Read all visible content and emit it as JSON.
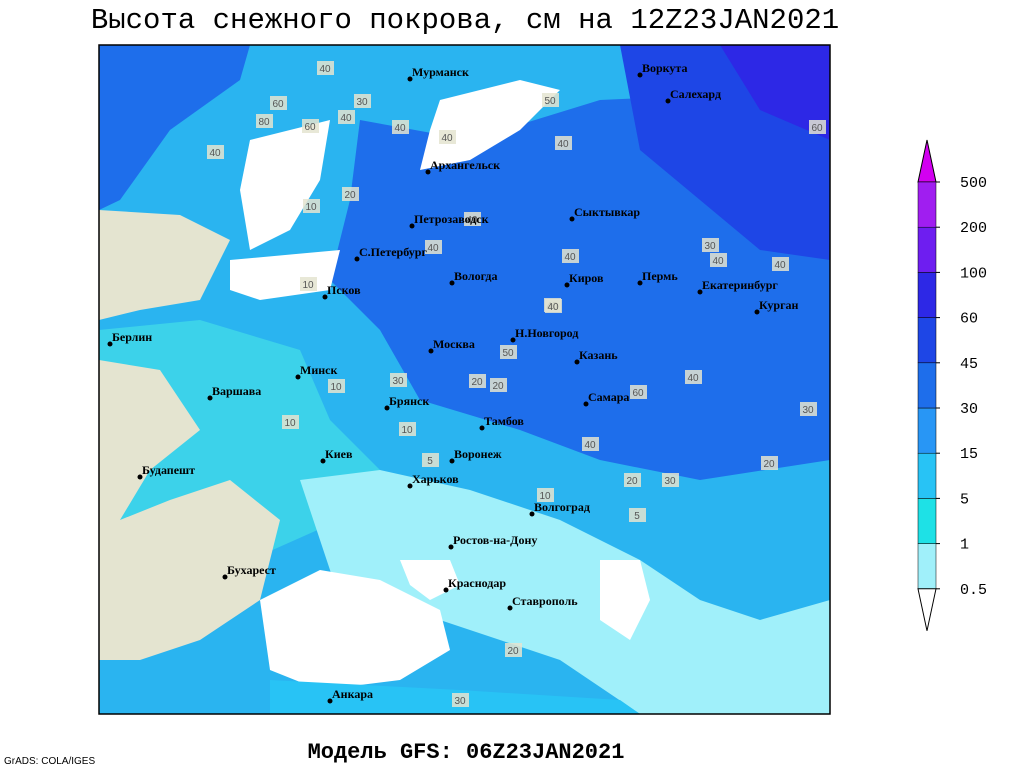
{
  "title": "Высота снежного покрова, см на 12Z23JAN2021",
  "footer": "Модель GFS: 06Z23JAN2021",
  "credit": "GrADS: COLA/IGES",
  "colorbar": {
    "levels": [
      0.5,
      1,
      5,
      15,
      30,
      45,
      60,
      100,
      200,
      500
    ],
    "colors": [
      "#ffffff",
      "#a0f0fa",
      "#1ee1e6",
      "#28c3f5",
      "#2896f5",
      "#1e6eeb",
      "#1e46e6",
      "#2d28e6",
      "#6e1ef0",
      "#a01ef0",
      "#d200f0"
    ]
  },
  "cities": [
    "Мурманск",
    "Воркута",
    "Салехард",
    "Архангельск",
    "Петрозаводск",
    "Сыктывкар",
    "С.Петербург",
    "Вологда",
    "Киров",
    "Пермь",
    "Екатеринбург",
    "Курган",
    "Псков",
    "Н.Новгород",
    "Берлин",
    "Москва",
    "Казань",
    "Варшава",
    "Минск",
    "Самара",
    "Брянск",
    "Тамбов",
    "Киев",
    "Воронеж",
    "Будапешт",
    "Харьков",
    "Волгоград",
    "Ростов-на-Дону",
    "Бухарест",
    "Краснодар",
    "Ставрополь",
    "Анкара"
  ],
  "contour_labels": [
    40,
    60,
    80,
    40,
    60,
    40,
    30,
    40,
    40,
    50,
    40,
    60,
    10,
    20,
    40,
    40,
    40,
    30,
    40,
    40,
    40,
    10,
    50,
    40,
    40,
    30,
    20,
    40,
    60,
    30,
    20,
    30,
    10,
    10,
    20,
    10,
    20,
    10,
    5,
    5,
    30,
    20
  ]
}
